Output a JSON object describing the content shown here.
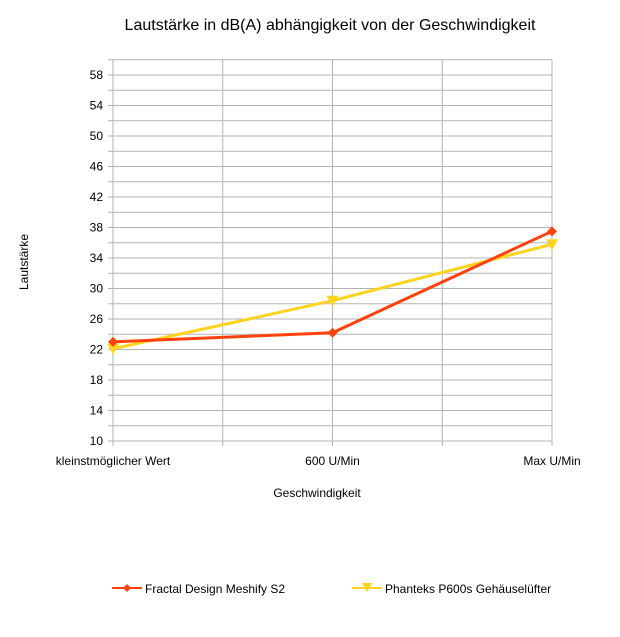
{
  "chart_data": {
    "type": "line",
    "title": "Lautstärke in dB(A) abhängigkeit von der Geschwindigkeit",
    "xlabel": "Geschwindigkeit",
    "ylabel": "Lautstärke",
    "categories": [
      "kleinstmöglicher Wert",
      "600 U/Min",
      "Max U/Min"
    ],
    "ylim": [
      10,
      60
    ],
    "yticks": [
      10,
      14,
      18,
      22,
      26,
      30,
      34,
      38,
      42,
      46,
      50,
      54,
      58
    ],
    "grid": true,
    "legend_position": "bottom",
    "series": [
      {
        "name": "Fractal Design Meshify S2",
        "values": [
          23.0,
          24.2,
          37.5
        ],
        "color": "#ff420e",
        "marker": "diamond"
      },
      {
        "name": "Phanteks P600s Gehäuselüfter",
        "values": [
          22.1,
          28.4,
          35.8
        ],
        "color": "#ffd320",
        "marker": "triangle-down"
      }
    ]
  }
}
